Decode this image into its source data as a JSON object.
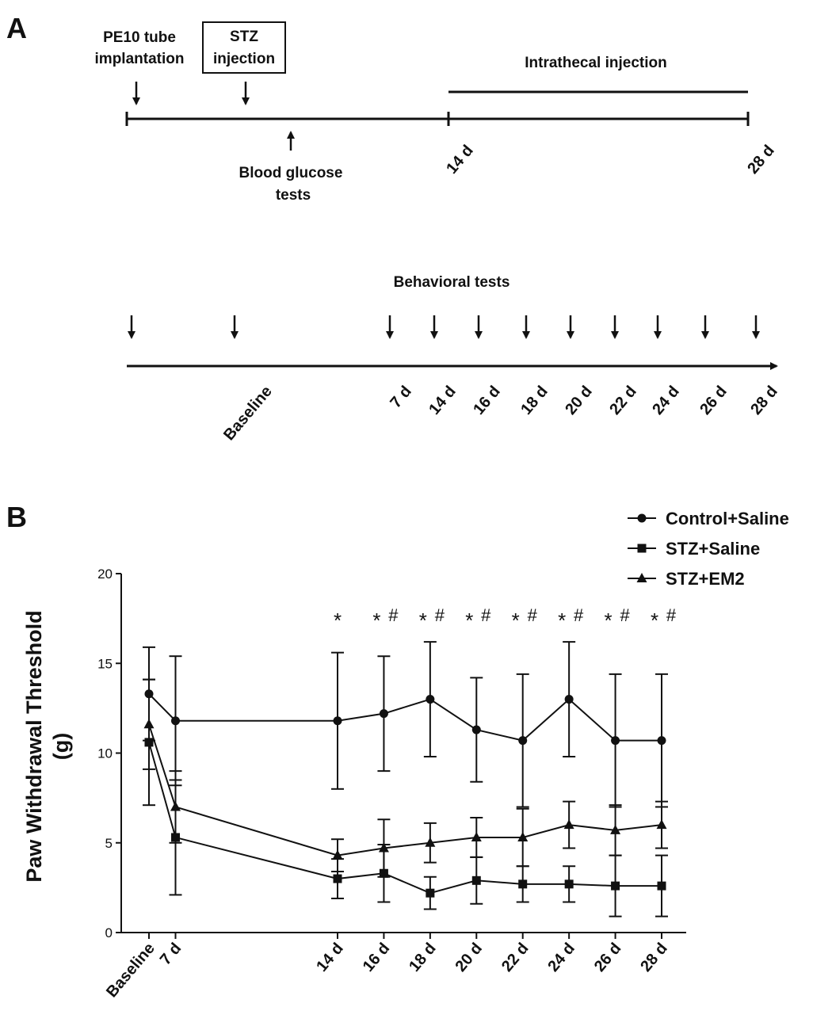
{
  "panel_a": {
    "label": "A",
    "timeline1": {
      "pe10_label": [
        "PE10 tube",
        "implantation"
      ],
      "stz_label": [
        "STZ",
        "injection"
      ],
      "blood_label": [
        "Blood glucose",
        "tests"
      ],
      "intrathecal_label": "Intrathecal injection",
      "day_start": "14 d",
      "day_end": "28 d"
    },
    "timeline2": {
      "title": "Behavioral tests",
      "labels": [
        "Baseline",
        "7 d",
        "14 d",
        "16 d",
        "18 d",
        "20 d",
        "22 d",
        "24 d",
        "26 d",
        "28 d"
      ]
    }
  },
  "panel_b": {
    "label": "B"
  },
  "chart_data": {
    "type": "line",
    "ylabel": [
      "Paw Withdrawal Threshold",
      "(g)"
    ],
    "xlabel": "",
    "ylim": [
      0,
      20
    ],
    "yticks": [
      0,
      5,
      10,
      15,
      20
    ],
    "categories": [
      "Baseline",
      "7 d",
      "14 d",
      "16 d",
      "18 d",
      "20 d",
      "22 d",
      "24 d",
      "26 d",
      "28 d"
    ],
    "x_days": [
      0,
      7,
      14,
      16,
      18,
      20,
      22,
      24,
      26,
      28
    ],
    "series": [
      {
        "name": "Control+Saline",
        "marker": "circle",
        "values": [
          13.3,
          11.8,
          11.8,
          12.2,
          13.0,
          11.3,
          10.7,
          13.0,
          10.7,
          10.7
        ],
        "errors": [
          2.6,
          3.6,
          3.8,
          3.2,
          3.2,
          2.9,
          3.7,
          3.2,
          3.7,
          3.7
        ]
      },
      {
        "name": "STZ+Saline",
        "marker": "square",
        "values": [
          10.6,
          5.3,
          3.0,
          3.3,
          2.2,
          2.9,
          2.7,
          2.7,
          2.6,
          2.6
        ],
        "errors": [
          3.5,
          3.2,
          1.1,
          1.6,
          0.9,
          1.3,
          1.0,
          1.0,
          1.7,
          1.7
        ]
      },
      {
        "name": "STZ+EM2",
        "marker": "triangle",
        "values": [
          11.6,
          7.0,
          4.3,
          4.7,
          5.0,
          5.3,
          5.3,
          6.0,
          5.7,
          6.0
        ],
        "errors": [
          2.5,
          2.0,
          0.9,
          1.6,
          1.1,
          1.1,
          1.6,
          1.3,
          1.4,
          1.3
        ]
      }
    ],
    "annotations": [
      {
        "category": "14 d",
        "star": "*",
        "hash": ""
      },
      {
        "category": "16 d",
        "star": "*",
        "hash": "#"
      },
      {
        "category": "18 d",
        "star": "*",
        "hash": "#"
      },
      {
        "category": "20 d",
        "star": "*",
        "hash": "#"
      },
      {
        "category": "22 d",
        "star": "*",
        "hash": "#"
      },
      {
        "category": "24 d",
        "star": "*",
        "hash": "#"
      },
      {
        "category": "26 d",
        "star": "*",
        "hash": "#"
      },
      {
        "category": "28 d",
        "star": "*",
        "hash": "#"
      }
    ],
    "legend_position": "top-right"
  }
}
